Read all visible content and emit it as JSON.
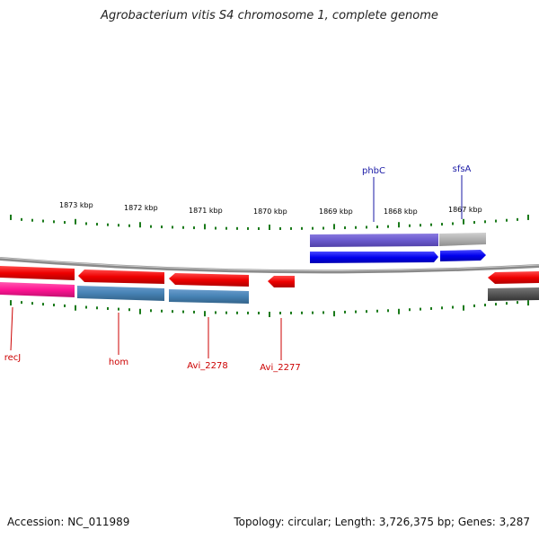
{
  "title": "Agrobacterium vitis S4 chromosome 1, complete genome",
  "footer": {
    "accession": "Accession: NC_011989",
    "summary": "Topology: circular; Length: 3,726,375 bp; Genes: 3,287"
  },
  "ticks": [
    "1873 kbp",
    "1872 kbp",
    "1871 kbp",
    "1870 kbp",
    "1869 kbp",
    "1868 kbp",
    "1867 kbp"
  ],
  "top_genes": [
    {
      "name": "phbC",
      "color": "#1a1aa6"
    },
    {
      "name": "sfsA",
      "color": "#1a1aa6"
    }
  ],
  "bottom_genes": [
    {
      "name": "recJ",
      "color": "#cc0000"
    },
    {
      "name": "hom",
      "color": "#cc0000"
    },
    {
      "name": "Avi_2278",
      "color": "#cc0000"
    },
    {
      "name": "Avi_2277",
      "color": "#cc0000"
    }
  ],
  "colors": {
    "forward_cds": "#0000ee",
    "forward_gene": "#6a5acd",
    "reverse_cds": "#ee0000",
    "reverse_gene": "#4682b4",
    "rna": "#ff1493",
    "backbone": "#7a7a7a",
    "tick": "#1a7a1a",
    "grey_feature": "#b0b0b0",
    "dark_feature": "#555555"
  }
}
